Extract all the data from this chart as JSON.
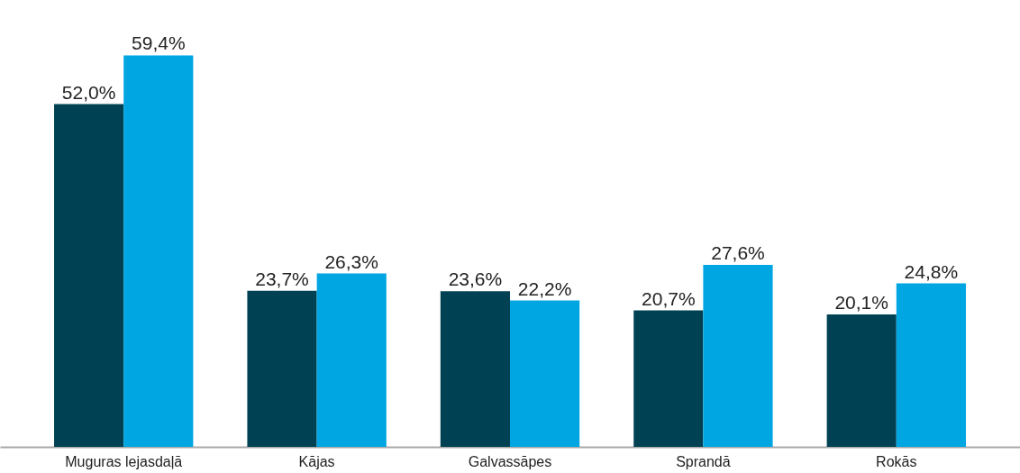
{
  "chart_data": {
    "type": "bar",
    "categories": [
      "Muguras lejasdaļā",
      "Kājas",
      "Galvassāpes",
      "Sprandā",
      "Rokās"
    ],
    "series": [
      {
        "color": "#004254",
        "values": [
          52.0,
          23.7,
          23.6,
          20.7,
          20.1
        ],
        "value_labels": [
          "52,0%",
          "23,7%",
          "23,6%",
          "20,7%",
          "20,1%"
        ]
      },
      {
        "color": "#00a6e2",
        "values": [
          59.4,
          26.3,
          22.2,
          27.6,
          24.8
        ],
        "value_labels": [
          "59,4%",
          "26,3%",
          "22,2%",
          "27,6%",
          "24,8%"
        ]
      }
    ],
    "grid": false,
    "legend": false
  }
}
